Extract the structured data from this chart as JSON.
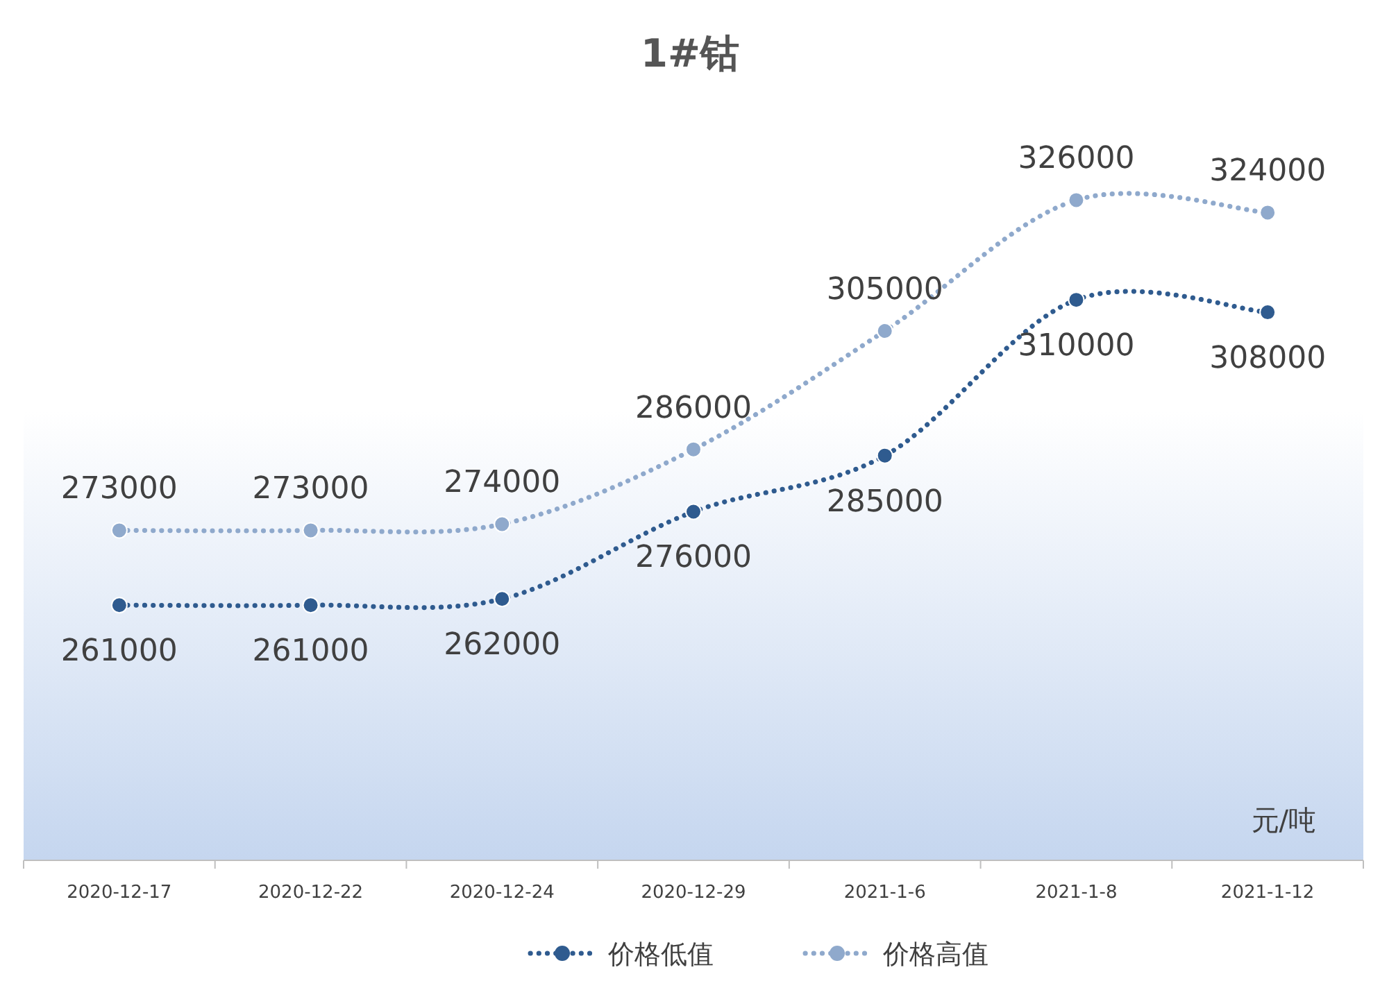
{
  "chart_data": {
    "type": "line",
    "title": "1#钴",
    "categories": [
      "2020-12-17",
      "2020-12-22",
      "2020-12-24",
      "2020-12-29",
      "2021-1-6",
      "2021-1-8",
      "2021-1-12"
    ],
    "series": [
      {
        "name": "价格低值",
        "color": "#2f5b8f",
        "values": [
          261000,
          261000,
          262000,
          276000,
          285000,
          310000,
          308000
        ]
      },
      {
        "name": "价格高值",
        "color": "#8fa9cc",
        "values": [
          273000,
          273000,
          274000,
          286000,
          305000,
          326000,
          324000
        ]
      }
    ],
    "data_labels": true,
    "marker": "circle",
    "line_style": "dotted",
    "legend": "bottom",
    "annotations": [
      "元/吨"
    ]
  }
}
